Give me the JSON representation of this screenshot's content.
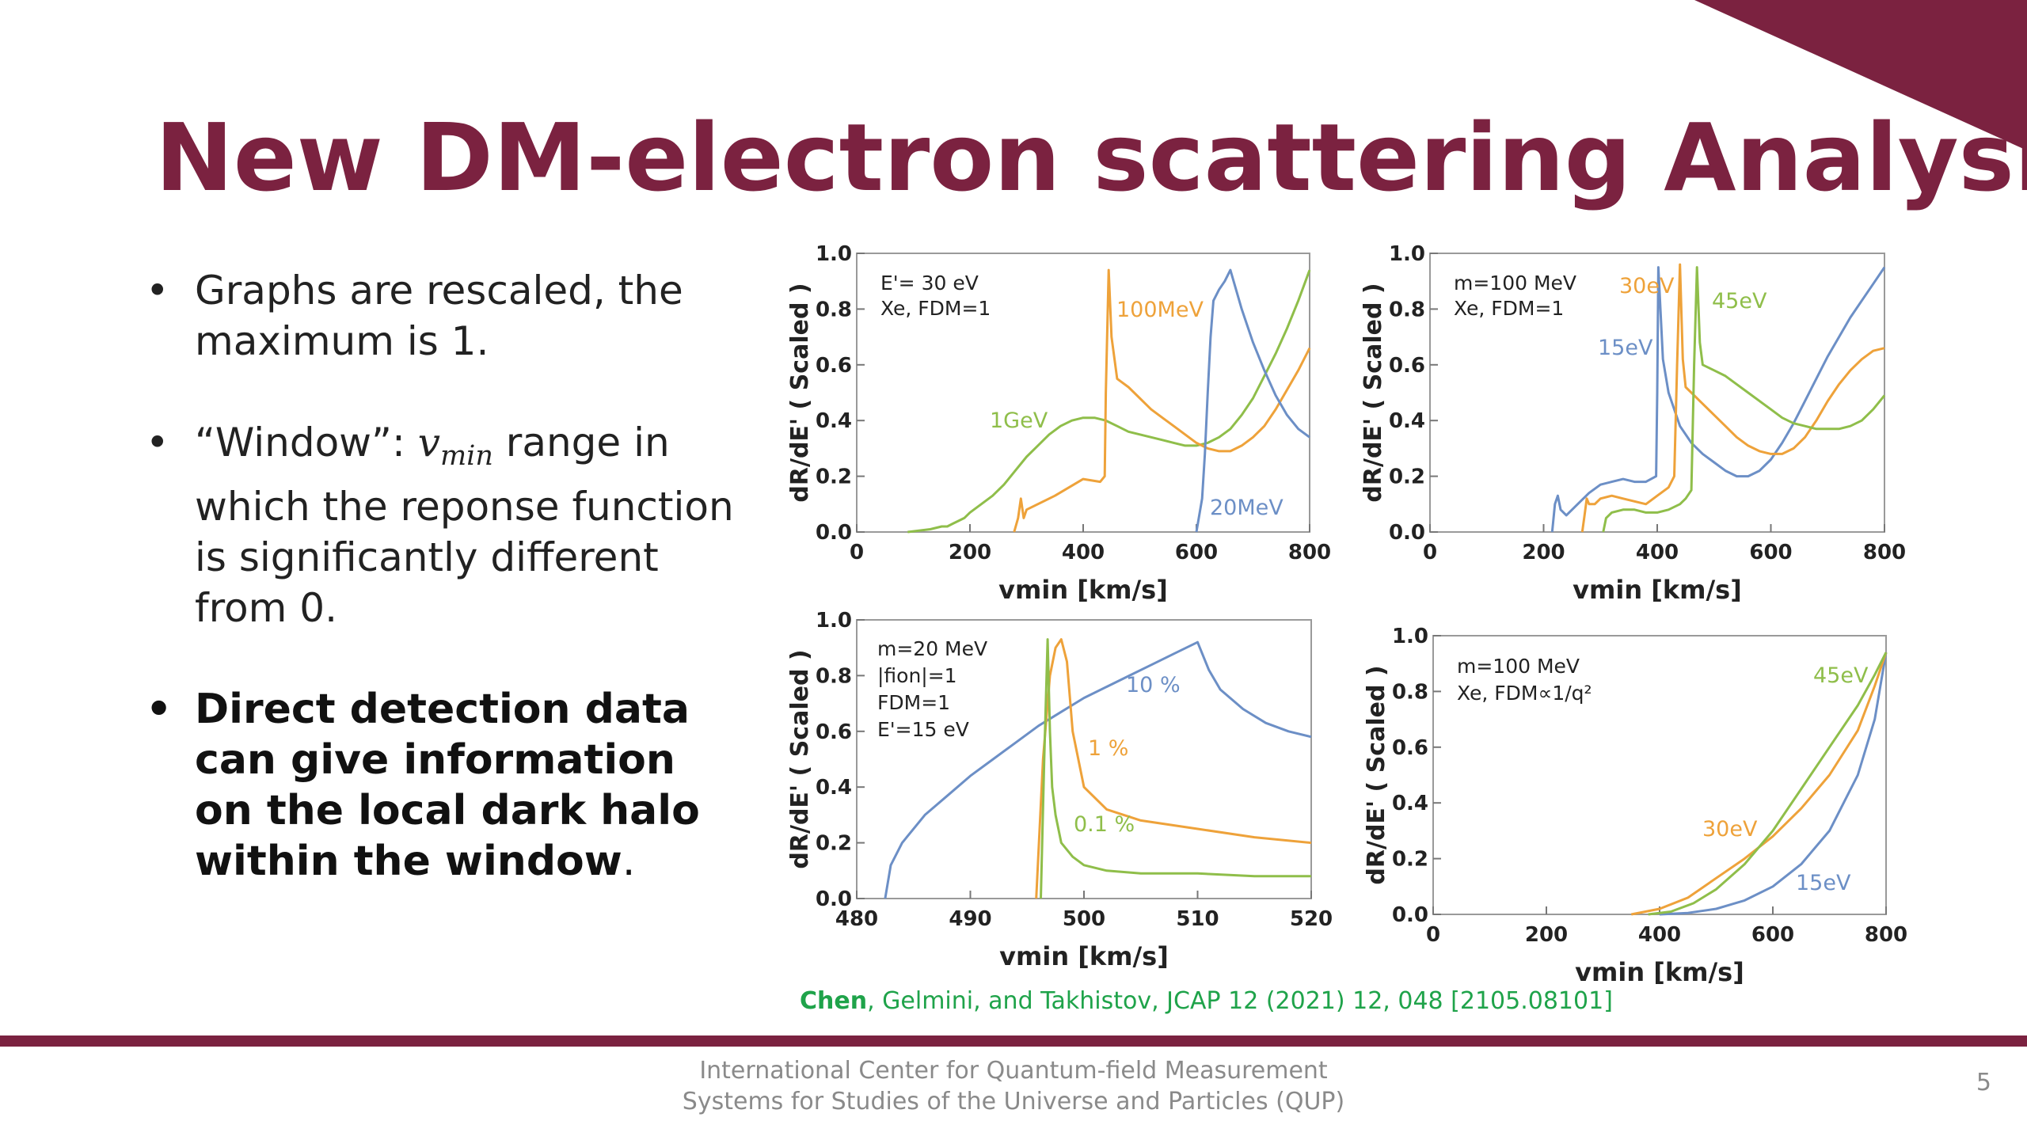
{
  "slide": {
    "title": "New DM-electron scattering Analysis",
    "accent_color": "#7b2240",
    "bullets": [
      {
        "text": "Graphs are rescaled, the maximum is 1."
      },
      {
        "prefix": "“Window”: ",
        "var": "v",
        "sub": "min",
        "suffix": " range in which the reponse function is significantly different from 0."
      },
      {
        "text": "Direct detection data can give information on the local dark halo within the window",
        "tail": "."
      }
    ],
    "citation": {
      "lead": "Chen",
      "rest": ", Gelmini, and Takhistov, JCAP 12 (2021) 12, 048 [2105.08101]"
    },
    "footer": {
      "line1": "International Center for Quantum-field Measurement",
      "line2": "Systems for Studies of the Universe and Particles (QUP)"
    },
    "page_number": "5"
  },
  "chart_data": [
    {
      "type": "line",
      "ylabel": "dR/dE' ( Scaled )",
      "xlabel": "vmin [km/s]",
      "xlim": [
        0,
        800
      ],
      "ylim": [
        0,
        1
      ],
      "xticks": [
        "0",
        "200",
        "400",
        "600",
        "800"
      ],
      "yticks": [
        "0.0",
        "0.2",
        "0.4",
        "0.6",
        "0.8",
        "1.0"
      ],
      "annotations": [
        "E'= 30 eV",
        "Xe, FDM=1"
      ],
      "series": [
        {
          "name": "1GeV",
          "color": "#8fbe4a",
          "x": [
            90,
            130,
            150,
            160,
            170,
            180,
            190,
            200,
            220,
            240,
            260,
            280,
            300,
            320,
            340,
            360,
            380,
            400,
            420,
            440,
            460,
            480,
            500,
            520,
            540,
            560,
            580,
            600,
            620,
            640,
            660,
            680,
            700,
            720,
            740,
            760,
            780,
            800
          ],
          "y": [
            0,
            0.01,
            0.02,
            0.02,
            0.03,
            0.04,
            0.05,
            0.07,
            0.1,
            0.13,
            0.17,
            0.22,
            0.27,
            0.31,
            0.35,
            0.38,
            0.4,
            0.41,
            0.41,
            0.4,
            0.38,
            0.36,
            0.35,
            0.34,
            0.33,
            0.32,
            0.31,
            0.31,
            0.32,
            0.34,
            0.37,
            0.42,
            0.48,
            0.56,
            0.64,
            0.73,
            0.83,
            0.94
          ]
        },
        {
          "name": "100MeV",
          "color": "#eea23a",
          "x": [
            278,
            285,
            290,
            295,
            300,
            350,
            400,
            430,
            438,
            440,
            445,
            450,
            460,
            480,
            500,
            520,
            540,
            560,
            580,
            600,
            620,
            640,
            660,
            680,
            700,
            720,
            740,
            760,
            780,
            800
          ],
          "y": [
            0,
            0.05,
            0.12,
            0.05,
            0.08,
            0.13,
            0.19,
            0.18,
            0.2,
            0.5,
            0.94,
            0.7,
            0.55,
            0.52,
            0.48,
            0.44,
            0.41,
            0.38,
            0.35,
            0.32,
            0.3,
            0.29,
            0.29,
            0.31,
            0.34,
            0.38,
            0.44,
            0.51,
            0.58,
            0.66
          ]
        },
        {
          "name": "20MeV",
          "color": "#6c8fc6",
          "x": [
            600,
            605,
            610,
            615,
            620,
            625,
            630,
            640,
            650,
            660,
            680,
            700,
            720,
            740,
            760,
            780,
            800
          ],
          "y": [
            0,
            0.06,
            0.12,
            0.28,
            0.5,
            0.7,
            0.83,
            0.87,
            0.9,
            0.94,
            0.8,
            0.68,
            0.58,
            0.49,
            0.42,
            0.37,
            0.34
          ]
        }
      ],
      "labels": [
        "1GeV",
        "100MeV",
        "20MeV"
      ]
    },
    {
      "type": "line",
      "ylabel": "dR/dE' ( Scaled )",
      "xlabel": "vmin [km/s]",
      "xlim": [
        0,
        800
      ],
      "ylim": [
        0,
        1
      ],
      "xticks": [
        "0",
        "200",
        "400",
        "600",
        "800"
      ],
      "yticks": [
        "0.0",
        "0.2",
        "0.4",
        "0.6",
        "0.8",
        "1.0"
      ],
      "annotations": [
        "m=100 MeV",
        "Xe, FDM=1"
      ],
      "series": [
        {
          "name": "15eV",
          "color": "#6c8fc6",
          "x": [
            215,
            220,
            225,
            230,
            240,
            260,
            280,
            300,
            320,
            340,
            360,
            380,
            398,
            400,
            402,
            410,
            420,
            440,
            460,
            480,
            500,
            520,
            540,
            560,
            580,
            600,
            620,
            640,
            660,
            680,
            700,
            720,
            740,
            760,
            780,
            800
          ],
          "y": [
            0,
            0.1,
            0.13,
            0.08,
            0.06,
            0.1,
            0.14,
            0.17,
            0.18,
            0.19,
            0.18,
            0.18,
            0.2,
            0.5,
            0.95,
            0.62,
            0.5,
            0.38,
            0.32,
            0.28,
            0.25,
            0.22,
            0.2,
            0.2,
            0.22,
            0.26,
            0.32,
            0.39,
            0.47,
            0.55,
            0.63,
            0.7,
            0.77,
            0.83,
            0.89,
            0.95
          ]
        },
        {
          "name": "30eV",
          "color": "#eea23a",
          "x": [
            268,
            272,
            276,
            280,
            290,
            300,
            320,
            340,
            360,
            380,
            400,
            420,
            430,
            435,
            440,
            445,
            450,
            460,
            480,
            500,
            520,
            540,
            560,
            580,
            600,
            620,
            640,
            660,
            680,
            700,
            720,
            740,
            760,
            780,
            800
          ],
          "y": [
            0,
            0.06,
            0.12,
            0.1,
            0.1,
            0.12,
            0.13,
            0.12,
            0.11,
            0.1,
            0.13,
            0.16,
            0.2,
            0.6,
            0.96,
            0.62,
            0.52,
            0.5,
            0.46,
            0.42,
            0.38,
            0.34,
            0.31,
            0.29,
            0.28,
            0.28,
            0.3,
            0.34,
            0.4,
            0.47,
            0.53,
            0.58,
            0.62,
            0.65,
            0.66
          ]
        },
        {
          "name": "45eV",
          "color": "#8fbe4a",
          "x": [
            305,
            310,
            320,
            340,
            360,
            380,
            400,
            420,
            440,
            450,
            460,
            465,
            470,
            475,
            480,
            490,
            500,
            520,
            540,
            560,
            580,
            600,
            620,
            640,
            660,
            680,
            700,
            720,
            740,
            760,
            780,
            800
          ],
          "y": [
            0,
            0.05,
            0.07,
            0.08,
            0.08,
            0.07,
            0.07,
            0.08,
            0.1,
            0.12,
            0.15,
            0.6,
            0.95,
            0.68,
            0.6,
            0.59,
            0.58,
            0.56,
            0.53,
            0.5,
            0.47,
            0.44,
            0.41,
            0.39,
            0.38,
            0.37,
            0.37,
            0.37,
            0.38,
            0.4,
            0.44,
            0.49
          ]
        }
      ],
      "labels": [
        "30eV",
        "45eV",
        "15eV"
      ]
    },
    {
      "type": "line",
      "ylabel": "dR/dE' ( Scaled )",
      "xlabel": "vmin [km/s]",
      "xlim": [
        480,
        520
      ],
      "ylim": [
        0,
        1
      ],
      "xticks": [
        "480",
        "490",
        "500",
        "510",
        "520"
      ],
      "yticks": [
        "0.0",
        "0.2",
        "0.4",
        "0.6",
        "0.8",
        "1.0"
      ],
      "annotations": [
        "m=20 MeV",
        "|fion|=1",
        "FDM=1",
        "E'=15 eV"
      ],
      "series": [
        {
          "name": "10 %",
          "color": "#6c8fc6",
          "x": [
            482.5,
            483,
            484,
            486,
            488,
            490,
            492,
            494,
            496,
            498,
            500,
            502,
            504,
            506,
            508,
            510,
            511,
            512,
            514,
            516,
            518,
            520
          ],
          "y": [
            0,
            0.12,
            0.2,
            0.3,
            0.37,
            0.44,
            0.5,
            0.56,
            0.62,
            0.67,
            0.72,
            0.76,
            0.8,
            0.84,
            0.88,
            0.92,
            0.82,
            0.75,
            0.68,
            0.63,
            0.6,
            0.58
          ]
        },
        {
          "name": "1 %",
          "color": "#eea23a",
          "x": [
            495.8,
            496.4,
            497,
            497.5,
            498,
            498.5,
            499,
            500,
            502,
            505,
            510,
            515,
            520
          ],
          "y": [
            0,
            0.5,
            0.8,
            0.9,
            0.93,
            0.85,
            0.6,
            0.4,
            0.32,
            0.28,
            0.25,
            0.22,
            0.2
          ]
        },
        {
          "name": "0.1 %",
          "color": "#8fbe4a",
          "x": [
            496.2,
            496.5,
            496.8,
            497,
            497.2,
            497.5,
            498,
            499,
            500,
            502,
            505,
            510,
            515,
            520
          ],
          "y": [
            0,
            0.5,
            0.93,
            0.6,
            0.4,
            0.3,
            0.2,
            0.15,
            0.12,
            0.1,
            0.09,
            0.09,
            0.08,
            0.08
          ]
        }
      ],
      "labels": [
        "10 %",
        "1 %",
        "0.1 %"
      ]
    },
    {
      "type": "line",
      "ylabel": "dR/dE' ( Scaled )",
      "xlabel": "vmin [km/s]",
      "xlim": [
        0,
        800
      ],
      "ylim": [
        0,
        1
      ],
      "xticks": [
        "0",
        "200",
        "400",
        "600",
        "800"
      ],
      "yticks": [
        "0.0",
        "0.2",
        "0.4",
        "0.6",
        "0.8",
        "1.0"
      ],
      "annotations": [
        "m=100 MeV",
        "Xe, FDM∝1/q²"
      ],
      "series": [
        {
          "name": "15eV",
          "color": "#6c8fc6",
          "x": [
            400,
            450,
            500,
            550,
            600,
            650,
            700,
            750,
            780,
            800
          ],
          "y": [
            0,
            0.005,
            0.02,
            0.05,
            0.1,
            0.18,
            0.3,
            0.5,
            0.7,
            0.94
          ]
        },
        {
          "name": "30eV",
          "color": "#eea23a",
          "x": [
            350,
            400,
            450,
            500,
            550,
            600,
            650,
            700,
            750,
            780,
            800
          ],
          "y": [
            0,
            0.02,
            0.06,
            0.13,
            0.2,
            0.28,
            0.38,
            0.5,
            0.66,
            0.82,
            0.94
          ]
        },
        {
          "name": "45eV",
          "color": "#8fbe4a",
          "x": [
            380,
            420,
            460,
            500,
            550,
            600,
            650,
            700,
            750,
            780,
            800
          ],
          "y": [
            0,
            0.01,
            0.04,
            0.09,
            0.18,
            0.3,
            0.45,
            0.6,
            0.75,
            0.86,
            0.94
          ]
        }
      ],
      "labels": [
        "45eV",
        "30eV",
        "15eV"
      ]
    }
  ]
}
